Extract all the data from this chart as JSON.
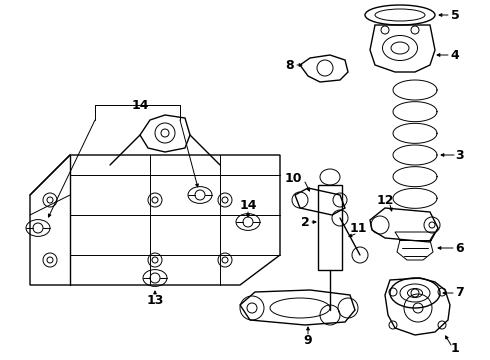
{
  "bg_color": "#ffffff",
  "line_color": "#000000",
  "label_fontsize": 8,
  "lw_thin": 0.7,
  "lw_med": 1.0,
  "lw_thick": 1.4
}
